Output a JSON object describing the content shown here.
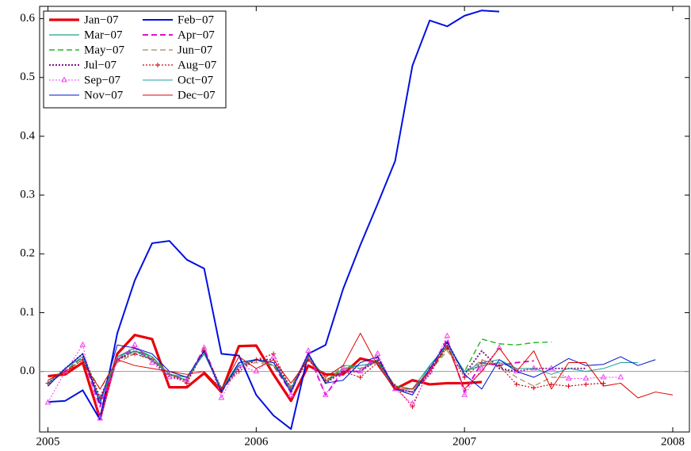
{
  "chart_data": {
    "type": "line",
    "x": [
      2005,
      2005.083,
      2005.167,
      2005.25,
      2005.333,
      2005.417,
      2005.5,
      2005.583,
      2005.667,
      2005.75,
      2005.833,
      2005.917,
      2006,
      2006.083,
      2006.167,
      2006.25,
      2006.333,
      2006.417,
      2006.5,
      2006.583,
      2006.667,
      2006.75,
      2006.833,
      2006.917,
      2007,
      2007.083,
      2007.167,
      2007.25,
      2007.333,
      2007.417,
      2007.5,
      2007.583,
      2007.667,
      2007.75,
      2007.833,
      2007.917,
      2008
    ],
    "xlim": [
      2004.96,
      2008.08
    ],
    "xticks": [
      2005,
      2006,
      2007,
      2008
    ],
    "ylim": [
      -0.103,
      0.621
    ],
    "yticks": [
      {
        "value": 0,
        "label": "0.0"
      },
      0.1,
      0.2,
      0.3,
      0.4,
      0.5,
      0.6
    ],
    "hline": 0,
    "legend": "upper left",
    "series": [
      {
        "name": "Jan−07",
        "color": "#e8000b",
        "width": 3.2,
        "dash": "solid",
        "marker": "none",
        "values": [
          -0.008,
          -0.005,
          0.015,
          -0.08,
          0.03,
          0.062,
          0.055,
          -0.027,
          -0.027,
          -0.003,
          -0.035,
          0.043,
          0.044,
          -0.005,
          -0.05,
          0.01,
          -0.005,
          -0.005,
          0.022,
          0.015,
          -0.03,
          -0.015,
          -0.022,
          -0.02,
          -0.02,
          -0.018,
          null,
          null,
          null,
          null,
          null,
          null,
          null,
          null,
          null,
          null,
          null
        ]
      },
      {
        "name": "Feb−07",
        "color": "#0010e0",
        "width": 2,
        "dash": "solid",
        "marker": "none",
        "values": [
          -0.052,
          -0.05,
          -0.032,
          -0.082,
          0.065,
          0.155,
          0.218,
          0.222,
          0.19,
          0.175,
          0.03,
          0.027,
          -0.04,
          -0.075,
          -0.098,
          0.03,
          0.045,
          0.14,
          0.215,
          0.285,
          0.358,
          0.52,
          0.597,
          0.587,
          0.605,
          0.614,
          0.612,
          null,
          null,
          null,
          null,
          null,
          null,
          null,
          null,
          null,
          null
        ]
      },
      {
        "name": "Mar−07",
        "color": "#1f9e8e",
        "width": 1.2,
        "dash": "solid",
        "marker": "none",
        "values": [
          -0.025,
          0.005,
          0.03,
          -0.05,
          0.025,
          0.04,
          0.025,
          -0.005,
          -0.01,
          0.03,
          -0.03,
          0.015,
          0.02,
          0.015,
          -0.03,
          0.03,
          -0.02,
          0.005,
          0.01,
          0.015,
          -0.025,
          -0.03,
          0.01,
          0.045,
          0,
          0.01,
          0.015,
          0.005,
          null,
          null,
          null,
          null,
          null,
          null,
          null,
          null,
          null
        ]
      },
      {
        "name": "Apr−07",
        "color": "#e010d0",
        "width": 2,
        "dash": "dashed",
        "marker": "none",
        "values": [
          -0.02,
          0,
          0.025,
          -0.06,
          0.02,
          0.04,
          0.02,
          -0.005,
          -0.015,
          0.04,
          -0.035,
          0.01,
          0.02,
          0.01,
          -0.035,
          0.03,
          -0.04,
          0,
          0,
          0.025,
          -0.03,
          -0.035,
          0,
          0.055,
          -0.035,
          0.015,
          0.01,
          0.015,
          0.018,
          null,
          null,
          null,
          null,
          null,
          null,
          null,
          null
        ]
      },
      {
        "name": "May−07",
        "color": "#22b522",
        "width": 1.4,
        "dash": "dashed",
        "marker": "none",
        "values": [
          -0.02,
          0,
          0.025,
          -0.05,
          0.02,
          0.035,
          0.025,
          -0.005,
          -0.015,
          0.035,
          -0.035,
          0.01,
          0.02,
          0.01,
          -0.03,
          0.03,
          -0.02,
          0.01,
          0.005,
          0.02,
          -0.025,
          -0.03,
          0,
          0.04,
          0,
          0.055,
          0.047,
          0.045,
          0.049,
          0.05,
          null,
          null,
          null,
          null,
          null,
          null,
          null
        ]
      },
      {
        "name": "Jun−07",
        "color": "#a08c5a",
        "width": 1.2,
        "dash": "dashed",
        "marker": "none",
        "values": [
          -0.015,
          0,
          0.02,
          -0.03,
          0.015,
          0.03,
          0.02,
          -0.005,
          -0.01,
          0.03,
          -0.03,
          0.01,
          0.015,
          0.01,
          -0.025,
          0.025,
          -0.015,
          0.005,
          0.005,
          0.015,
          -0.03,
          -0.035,
          0,
          0.035,
          -0.005,
          0.02,
          0.01,
          -0.01,
          -0.025,
          -0.01,
          -0.01,
          null,
          null,
          null,
          null,
          null,
          null
        ]
      },
      {
        "name": "Jul−07",
        "color": "#7a1a8a",
        "width": 2,
        "dash": "dotted",
        "marker": "none",
        "values": [
          -0.02,
          0.005,
          0.03,
          -0.045,
          0.02,
          0.035,
          0.02,
          -0.01,
          -0.015,
          0.035,
          -0.03,
          0.005,
          0.02,
          0.02,
          -0.03,
          0.03,
          -0.02,
          0,
          0,
          0.02,
          -0.03,
          -0.035,
          -0.005,
          0.05,
          -0.005,
          0.035,
          0.005,
          0,
          0.005,
          0.005,
          0.005,
          0.005,
          null,
          null,
          null,
          null,
          null
        ]
      },
      {
        "name": "Aug−07",
        "color": "#d00010",
        "width": 1.2,
        "dash": "dotted",
        "marker": "plus",
        "values": [
          -0.02,
          0,
          0.02,
          -0.045,
          0.02,
          0.03,
          0.02,
          -0.005,
          -0.02,
          0.035,
          -0.03,
          0,
          0.02,
          0.03,
          -0.03,
          0.02,
          -0.015,
          0,
          -0.01,
          0.015,
          -0.025,
          -0.06,
          0.005,
          0.04,
          -0.01,
          0.015,
          0.01,
          -0.022,
          -0.028,
          -0.022,
          -0.025,
          -0.022,
          -0.02,
          null,
          null,
          null,
          null
        ]
      },
      {
        "name": "Sep−07",
        "color": "#f040f0",
        "width": 1,
        "dash": "dotted",
        "marker": "triangle",
        "values": [
          -0.053,
          0,
          0.045,
          -0.08,
          0.02,
          0.045,
          0.015,
          -0.01,
          -0.015,
          0.04,
          -0.045,
          0.01,
          0,
          0.025,
          -0.04,
          0.035,
          -0.04,
          0.005,
          0,
          0.03,
          -0.03,
          -0.055,
          0,
          0.06,
          -0.04,
          0.005,
          0.04,
          0,
          0.005,
          0.005,
          -0.012,
          -0.012,
          -0.01,
          -0.01,
          null,
          null,
          null
        ]
      },
      {
        "name": "Oct−07",
        "color": "#1aa0a0",
        "width": 1,
        "dash": "solid",
        "marker": "none",
        "values": [
          -0.02,
          0.005,
          0.025,
          -0.05,
          0.025,
          0.035,
          0.02,
          -0.005,
          -0.01,
          0.03,
          -0.03,
          0.01,
          0.02,
          0.015,
          -0.03,
          0.025,
          -0.01,
          0.01,
          0.01,
          0.015,
          -0.03,
          -0.04,
          0.01,
          0.045,
          0,
          0.015,
          0.02,
          0.005,
          0.005,
          -0.005,
          0.005,
          0,
          0.005,
          0.015,
          0.015,
          null,
          null
        ]
      },
      {
        "name": "Nov−07",
        "color": "#0010d0",
        "width": 1,
        "dash": "solid",
        "marker": "none",
        "values": [
          -0.025,
          0.005,
          0.03,
          -0.055,
          0.045,
          0.04,
          0.03,
          0,
          -0.01,
          0.035,
          -0.035,
          0.015,
          0.02,
          0.015,
          -0.035,
          0.03,
          -0.02,
          -0.015,
          0.015,
          0.025,
          -0.03,
          -0.04,
          0.005,
          0.05,
          -0.005,
          -0.03,
          0.02,
          0,
          -0.01,
          0.005,
          0.022,
          0.01,
          0.012,
          0.025,
          0.01,
          0.02,
          null
        ]
      },
      {
        "name": "Dec−07",
        "color": "#e00000",
        "width": 1,
        "dash": "solid",
        "marker": "none",
        "values": [
          -0.015,
          0,
          0.015,
          -0.03,
          0.02,
          0.01,
          0.005,
          0,
          -0.005,
          0,
          -0.03,
          0.025,
          0.005,
          0.02,
          -0.02,
          0.02,
          -0.01,
          0.01,
          0.065,
          0.01,
          -0.03,
          -0.03,
          0,
          0.045,
          -0.03,
          0,
          0.04,
          0,
          0.035,
          -0.03,
          0.015,
          0.015,
          -0.025,
          -0.02,
          -0.045,
          -0.035,
          -0.04
        ]
      }
    ]
  }
}
